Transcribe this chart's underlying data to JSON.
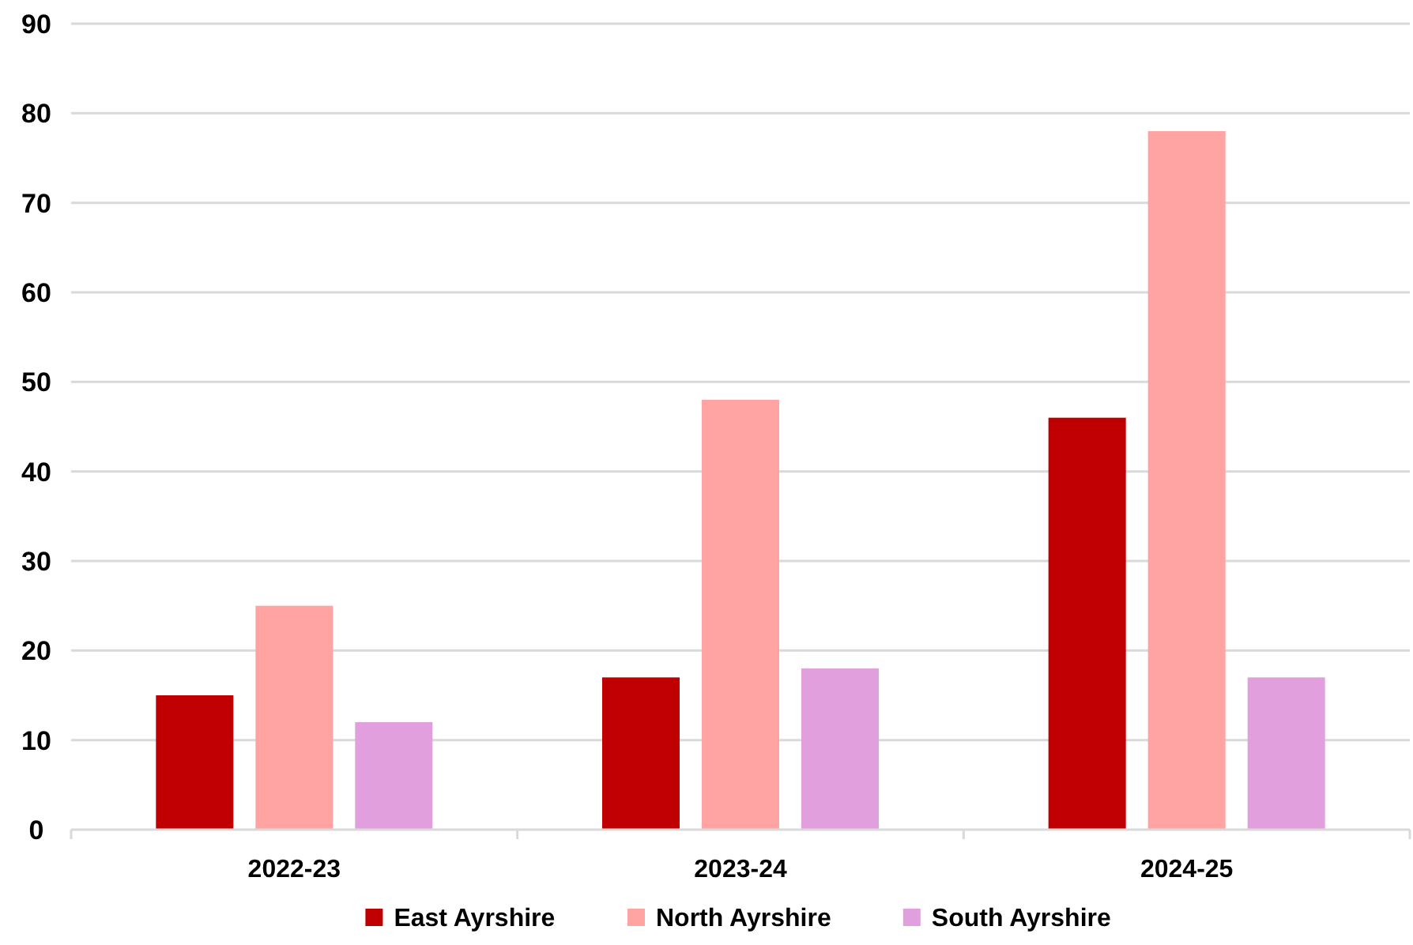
{
  "chart_data": {
    "type": "bar",
    "categories": [
      "2022-23",
      "2023-24",
      "2024-25"
    ],
    "series": [
      {
        "name": "East Ayrshire",
        "color": "#c00000",
        "values": [
          15,
          17,
          46
        ]
      },
      {
        "name": "North Ayrshire",
        "color": "#ffa3a3",
        "values": [
          25,
          48,
          78
        ]
      },
      {
        "name": "South Ayrshire",
        "color": "#e29fde",
        "values": [
          12,
          18,
          17
        ]
      }
    ],
    "ylim": [
      0,
      90
    ],
    "yticks": [
      0,
      10,
      20,
      30,
      40,
      50,
      60,
      70,
      80,
      90
    ],
    "grid": "y",
    "legend": "bottom"
  }
}
